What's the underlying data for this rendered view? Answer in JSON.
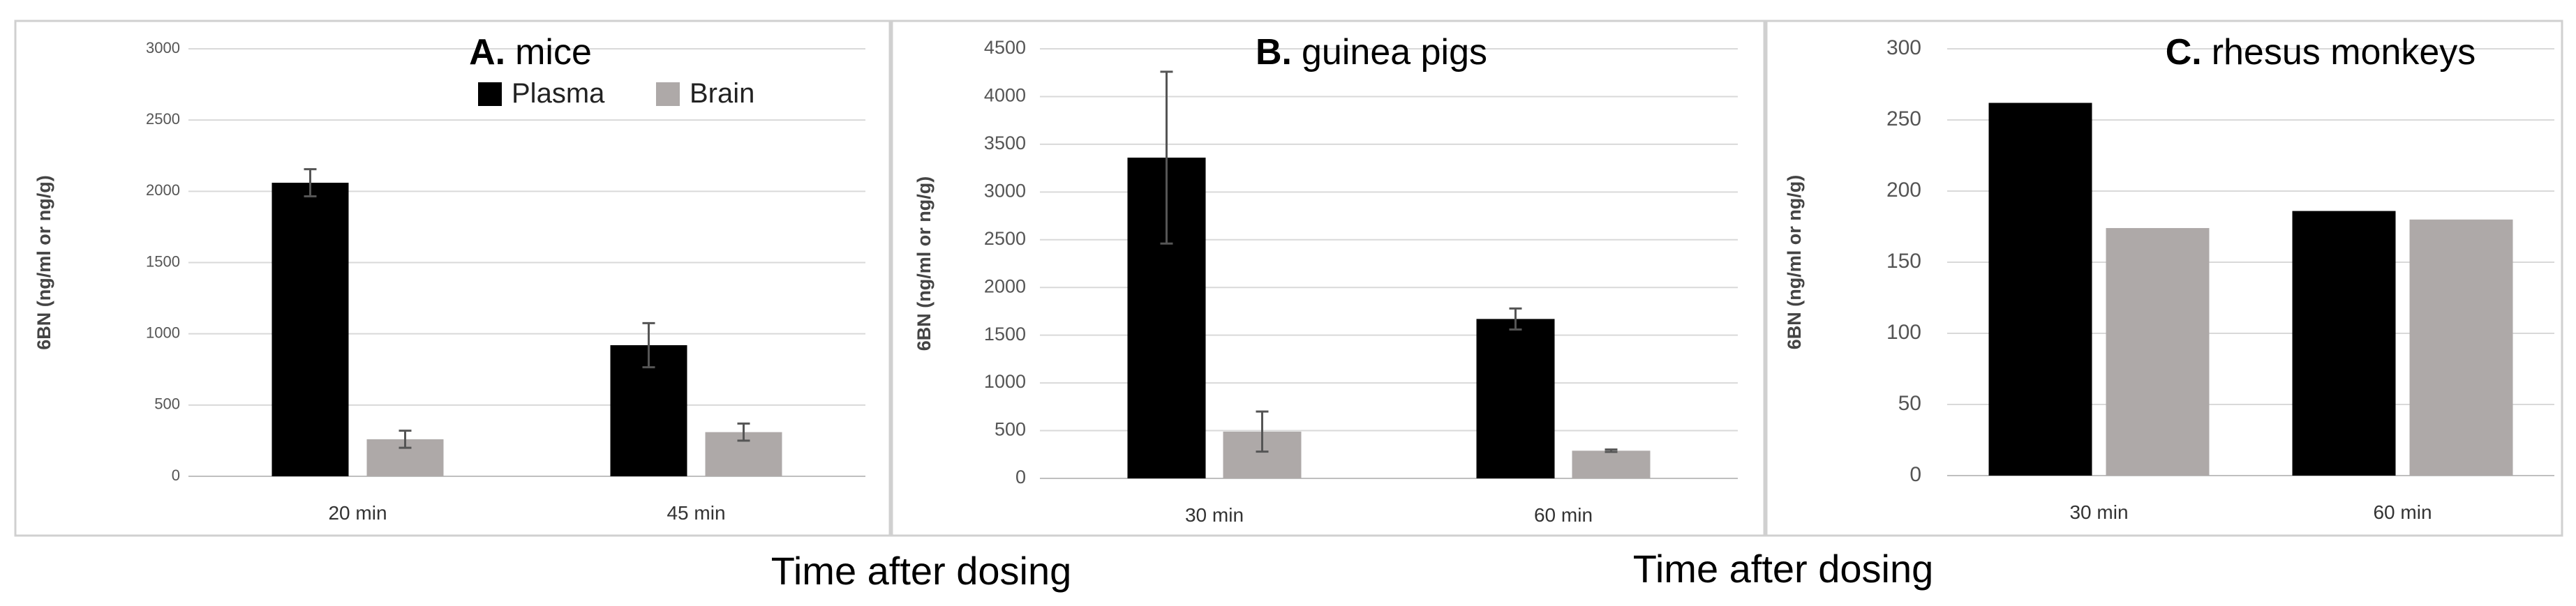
{
  "colors": {
    "plasma": "#000000",
    "brain": "#aea9a8"
  },
  "chart_data": [
    {
      "type": "bar",
      "title_letter": "A.",
      "title_text": "mice",
      "xlabel": "Time after dosing",
      "ylabel": "6BN (ng/ml or ng/g)",
      "categories": [
        "20 min",
        "45 min"
      ],
      "ylim": [
        0,
        3000
      ],
      "yticks": [
        0,
        500,
        1000,
        1500,
        2000,
        2500,
        3000
      ],
      "grid": true,
      "legend_position": "top-right",
      "series": [
        {
          "name": "Plasma",
          "values": [
            2060,
            920
          ],
          "errors": [
            95,
            155
          ]
        },
        {
          "name": "Brain",
          "values": [
            260,
            310
          ],
          "errors": [
            60,
            60
          ]
        }
      ]
    },
    {
      "type": "bar",
      "title_letter": "B.",
      "title_text": "guinea pigs",
      "xlabel": "",
      "ylabel": "6BN (ng/ml or ng/g)",
      "categories": [
        "30 min",
        "60 min"
      ],
      "ylim": [
        0,
        4500
      ],
      "yticks": [
        0,
        500,
        1000,
        1500,
        2000,
        2500,
        3000,
        3500,
        4000,
        4500
      ],
      "grid": true,
      "series": [
        {
          "values": [
            3360,
            1670
          ],
          "errors": [
            900,
            110
          ]
        },
        {
          "values": [
            490,
            290
          ],
          "errors": [
            210,
            12
          ]
        }
      ]
    },
    {
      "type": "bar",
      "title_letter": "C.",
      "title_text": "rhesus monkeys",
      "xlabel": "Time after dosing",
      "ylabel": "6BN (ng/ml or ng/g)",
      "categories": [
        "30 min",
        "60 min"
      ],
      "ylim": [
        0,
        300
      ],
      "yticks": [
        0,
        50,
        100,
        150,
        200,
        250,
        300
      ],
      "grid": true,
      "series": [
        {
          "values": [
            262,
            186
          ]
        },
        {
          "values": [
            174,
            180
          ]
        }
      ]
    }
  ]
}
